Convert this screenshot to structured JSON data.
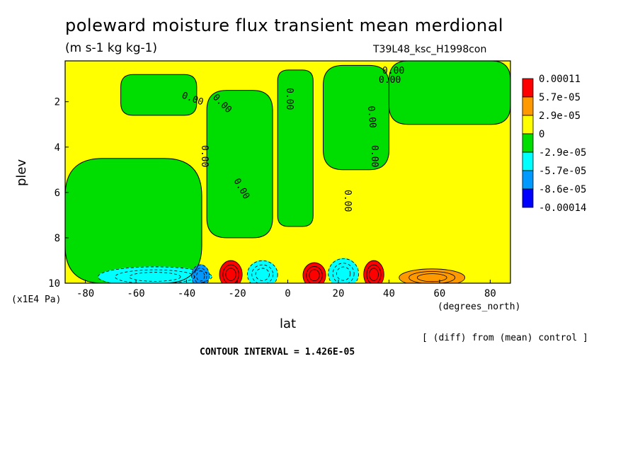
{
  "title": "poleward moisture flux transient mean merdional",
  "units": "(m s-1 kg kg-1)",
  "run_name": "T39L48_ksc_H1998con",
  "xlabel": "lat",
  "ylabel": "plev",
  "y_unit": "(x1E4 Pa)",
  "x_unit": "(degrees_north)",
  "note": "[ (diff) from (mean) control ]",
  "contour_interval": "CONTOUR INTERVAL = 1.426E-05",
  "chart_data": {
    "type": "heatmap",
    "title": "poleward moisture flux transient mean merdional",
    "xlabel": "lat",
    "ylabel": "plev",
    "xlim": [
      -88,
      88
    ],
    "ylim": [
      10,
      0.2
    ],
    "x_ticks": [
      -80,
      -60,
      -40,
      -20,
      0,
      20,
      40,
      60,
      80
    ],
    "x_tick_labels": [
      "-80",
      "-60",
      "-40",
      "-20",
      "0",
      "20",
      "40",
      "60",
      "80"
    ],
    "y_ticks": [
      2,
      4,
      6,
      8,
      10
    ],
    "y_tick_labels": [
      "2",
      "4",
      "6",
      "8",
      "10"
    ],
    "legend": {
      "position": "right",
      "labels": [
        "0.00011",
        "5.7e-05",
        "2.9e-05",
        "0",
        "-2.9e-05",
        "-5.7e-05",
        "-8.6e-05",
        "-0.00014"
      ],
      "colors": [
        "#ff0000",
        "#ff9900",
        "#ffff00",
        "#00dd00",
        "#00ffff",
        "#0099ff",
        "#0000ff"
      ]
    },
    "contour_labels": [
      "0.00",
      "0.00",
      "0.00",
      "0.00",
      "0.00",
      "0.00",
      "0.00",
      "0.00",
      "0.00",
      "0.00"
    ],
    "regions": [
      {
        "name": "upper-green-south",
        "lat": [
          -66,
          -36
        ],
        "plev": [
          0.8,
          2.6
        ],
        "class": 0
      },
      {
        "name": "green-mid-left",
        "lat": [
          -88,
          -34
        ],
        "plev": [
          4.5,
          10
        ],
        "class": 0
      },
      {
        "name": "green-tongue-south",
        "lat": [
          -32,
          -6
        ],
        "plev": [
          1.5,
          8.0
        ],
        "class": 0
      },
      {
        "name": "green-tongue-mid",
        "lat": [
          -4,
          10
        ],
        "plev": [
          0.6,
          7.5
        ],
        "class": 0
      },
      {
        "name": "green-upper-north",
        "lat": [
          14,
          40
        ],
        "plev": [
          0.4,
          5.0
        ],
        "class": 0
      },
      {
        "name": "green-north",
        "lat": [
          40,
          88
        ],
        "plev": [
          0.2,
          3.0
        ],
        "class": 0
      },
      {
        "name": "cyan-south",
        "lat": [
          -75,
          -30
        ],
        "plev": [
          9.2,
          10
        ],
        "class": -1
      },
      {
        "name": "blue-south",
        "lat": [
          -38,
          -31
        ],
        "plev": [
          9.1,
          10
        ],
        "class": -2
      },
      {
        "name": "cyan-south-2",
        "lat": [
          -16,
          -4
        ],
        "plev": [
          8.9,
          10
        ],
        "class": -1
      },
      {
        "name": "cyan-north",
        "lat": [
          16,
          28
        ],
        "plev": [
          8.8,
          10
        ],
        "class": -1
      },
      {
        "name": "red-1",
        "lat": [
          -27,
          -18
        ],
        "plev": [
          8.9,
          10
        ],
        "class": 3
      },
      {
        "name": "red-2",
        "lat": [
          6,
          15
        ],
        "plev": [
          9.0,
          10
        ],
        "class": 3
      },
      {
        "name": "red-3",
        "lat": [
          30,
          38
        ],
        "plev": [
          8.9,
          10
        ],
        "class": 3
      },
      {
        "name": "orange-4",
        "lat": [
          44,
          70
        ],
        "plev": [
          9.3,
          10
        ],
        "class": 2
      }
    ]
  }
}
